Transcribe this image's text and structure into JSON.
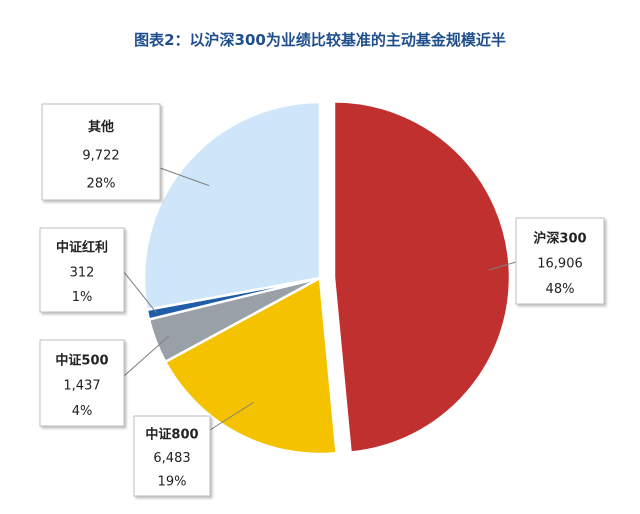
{
  "title": "图表2：以沪深300为业绩比较基准的主动基金规模近半",
  "colors": {
    "title": "#1F4E8C",
    "border": "#BFBFBF",
    "leader": "#7F7F7F"
  },
  "chart_data": {
    "type": "pie",
    "title": "图表2：以沪深300为业绩比较基准的主动基金规模近半",
    "slices": [
      {
        "name": "沪深300",
        "value": 16906,
        "value_label": "16,906",
        "percent": "48%",
        "color": "#C0302F"
      },
      {
        "name": "中证800",
        "value": 6483,
        "value_label": "6,483",
        "percent": "19%",
        "color": "#F5C200"
      },
      {
        "name": "中证500",
        "value": 1437,
        "value_label": "1,437",
        "percent": "4%",
        "color": "#9AA0A8"
      },
      {
        "name": "中证红利",
        "value": 312,
        "value_label": "312",
        "percent": "1%",
        "color": "#1F5DA8"
      },
      {
        "name": "其他",
        "value": 9722,
        "value_label": "9,722",
        "percent": "28%",
        "color": "#CFE6FA"
      }
    ]
  }
}
